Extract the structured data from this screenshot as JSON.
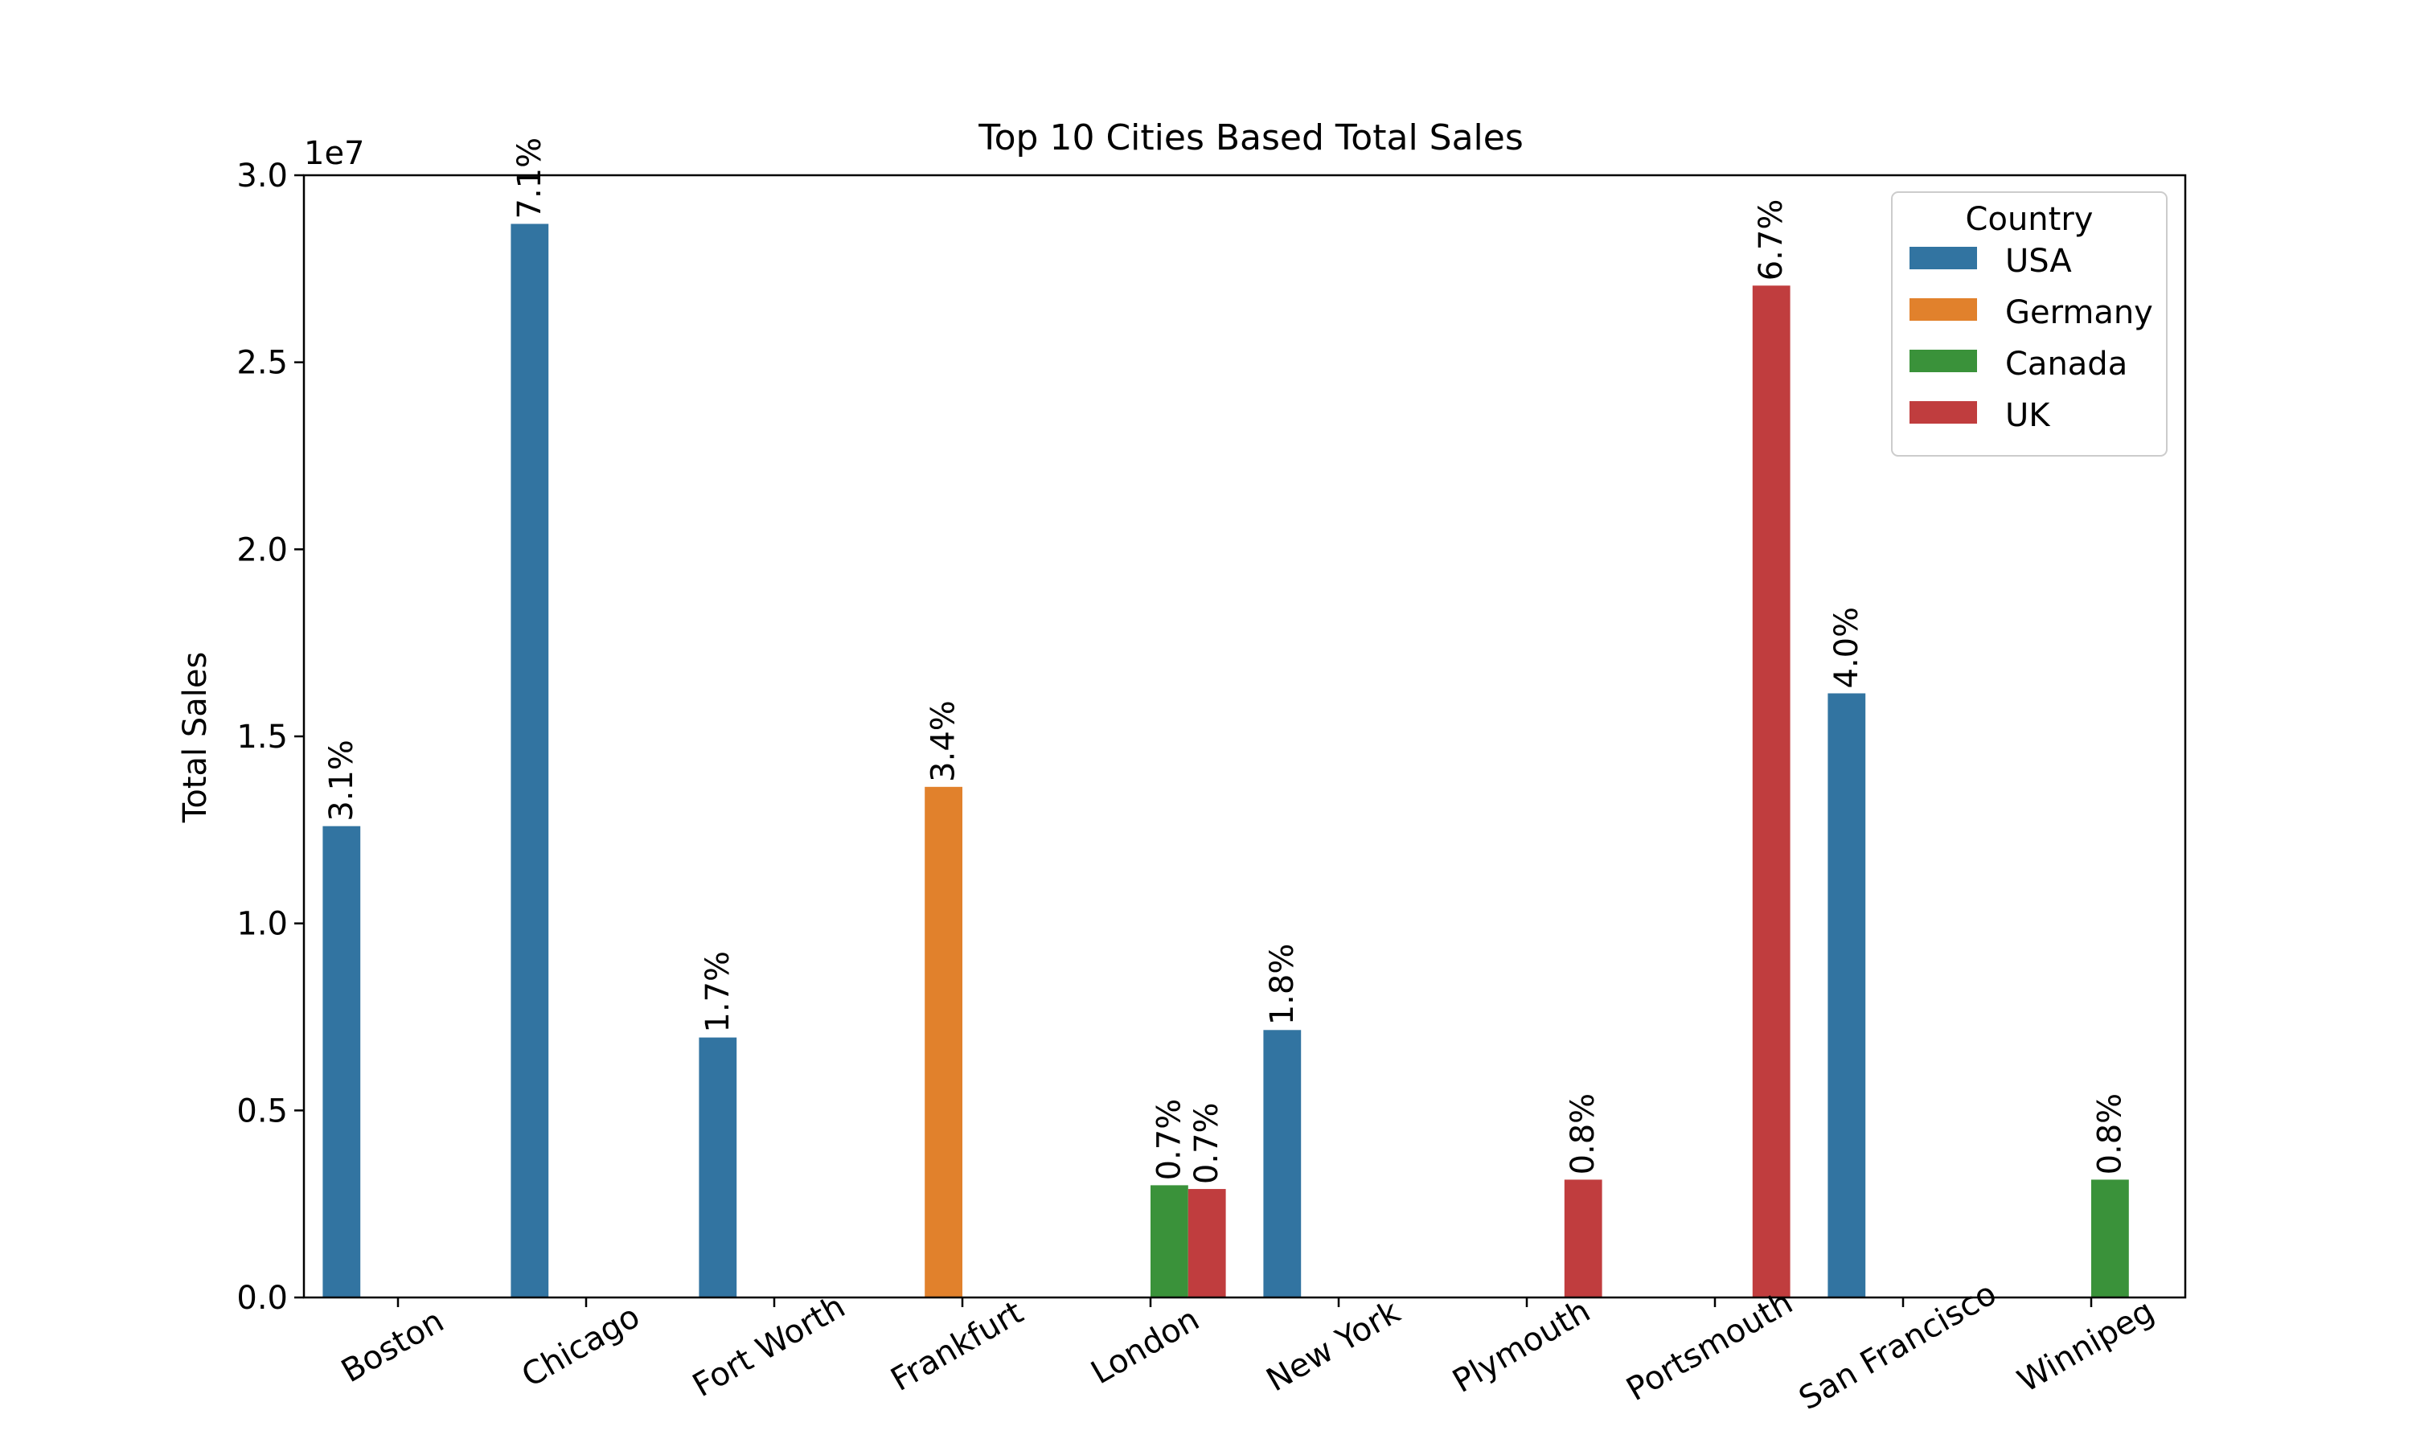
{
  "chart_data": {
    "type": "bar",
    "title": "Top 10 Cities Based Total Sales",
    "xlabel": "",
    "ylabel": "Total Sales",
    "y_offset_text": "1e7",
    "ylim": [
      0,
      30000000
    ],
    "y_ticks": [
      0,
      5000000,
      10000000,
      15000000,
      20000000,
      25000000,
      30000000
    ],
    "y_tick_labels": [
      "0.0",
      "0.5",
      "1.0",
      "1.5",
      "2.0",
      "2.5",
      "3.0"
    ],
    "grid": false,
    "legend": {
      "title": "Country",
      "placement": "top-right"
    },
    "categories": [
      "Boston",
      "Chicago",
      "Fort Worth",
      "Frankfurt",
      "London",
      "New York",
      "Plymouth",
      "Portsmouth",
      "San Francisco",
      "Winnipeg"
    ],
    "series": [
      {
        "name": "USA",
        "color": "#3274a1",
        "values": [
          12600000,
          28700000,
          6950000,
          null,
          null,
          7150000,
          null,
          null,
          16150000,
          null
        ],
        "labels": [
          "3.1%",
          "7.1%",
          "1.7%",
          null,
          null,
          "1.8%",
          null,
          null,
          "4.0%",
          null
        ]
      },
      {
        "name": "Germany",
        "color": "#e1812c",
        "values": [
          null,
          null,
          null,
          13650000,
          null,
          null,
          null,
          null,
          null,
          null
        ],
        "labels": [
          null,
          null,
          null,
          "3.4%",
          null,
          null,
          null,
          null,
          null,
          null
        ]
      },
      {
        "name": "Canada",
        "color": "#3a923a",
        "values": [
          null,
          null,
          null,
          null,
          3000000,
          null,
          null,
          null,
          null,
          3150000
        ],
        "labels": [
          null,
          null,
          null,
          null,
          "0.7%",
          null,
          null,
          null,
          null,
          "0.8%"
        ]
      },
      {
        "name": "UK",
        "color": "#c03d3e",
        "values": [
          null,
          null,
          null,
          null,
          2900000,
          null,
          3150000,
          27050000,
          null,
          null
        ],
        "labels": [
          null,
          null,
          null,
          null,
          "0.7%",
          null,
          "0.8%",
          "6.7%",
          null,
          null
        ]
      }
    ]
  }
}
